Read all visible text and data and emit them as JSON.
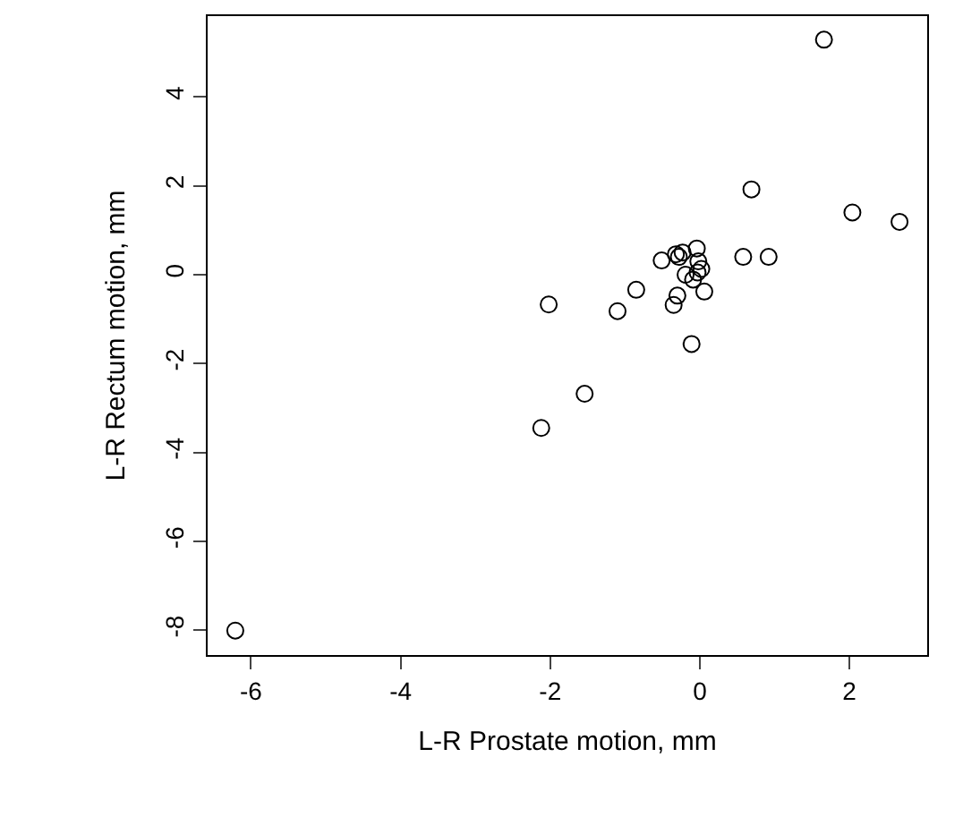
{
  "chart_data": {
    "type": "scatter",
    "xlabel": "L-R Prostate motion, mm",
    "ylabel": "L-R Rectum motion, mm",
    "x": [
      1.66,
      0.69,
      2.04,
      2.67,
      0.58,
      0.92,
      -0.04,
      -0.51,
      -0.32,
      -0.23,
      -0.28,
      -0.02,
      0.02,
      -0.03,
      -0.19,
      -0.09,
      0.06,
      -0.85,
      -0.3,
      -0.35,
      -1.1,
      -2.02,
      -0.11,
      -1.54,
      -2.12,
      -6.21
    ],
    "series": [
      {
        "color": "#000000",
        "values": [
          5.29,
          1.92,
          1.4,
          1.19,
          0.4,
          0.4,
          0.59,
          0.32,
          0.46,
          0.5,
          0.4,
          0.3,
          0.13,
          0.05,
          0.0,
          -0.11,
          -0.38,
          -0.34,
          -0.47,
          -0.68,
          -0.82,
          -0.67,
          -1.56,
          -2.68,
          -3.45,
          -8.01
        ]
      }
    ],
    "xlim": [
      -6.58,
      3.04
    ],
    "ylim": [
      -8.56,
      5.82
    ],
    "xticks": [
      -6,
      -4,
      -2,
      0,
      2
    ],
    "yticks": [
      -8,
      -6,
      -4,
      -2,
      0,
      2,
      4
    ],
    "marker": "circle"
  }
}
